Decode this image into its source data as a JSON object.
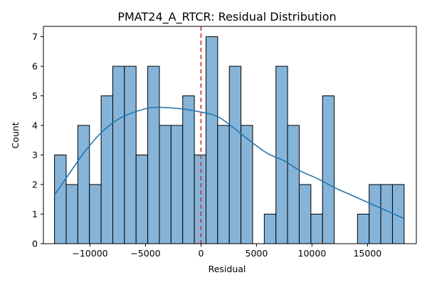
{
  "chart_data": {
    "type": "histogram",
    "title": "PMAT24_A_RTCR: Residual Distribution",
    "xlabel": "Residual",
    "ylabel": "Count",
    "xlim": [
      -14200,
      19400
    ],
    "ylim": [
      0,
      7.35
    ],
    "x_ticks": [
      -10000,
      -5000,
      0,
      5000,
      10000,
      15000
    ],
    "x_tick_labels": [
      "−10000",
      "−5000",
      "0",
      "5000",
      "10000",
      "15000"
    ],
    "y_ticks": [
      0,
      1,
      2,
      3,
      4,
      5,
      6,
      7
    ],
    "y_tick_labels": [
      "0",
      "1",
      "2",
      "3",
      "4",
      "5",
      "6",
      "7"
    ],
    "bin_start": -13200,
    "bin_width": 1050,
    "counts": [
      3,
      2,
      4,
      2,
      5,
      6,
      6,
      3,
      6,
      4,
      4,
      5,
      3,
      7,
      4,
      6,
      4,
      0,
      1,
      6,
      4,
      2,
      1,
      5,
      0,
      0,
      1,
      2,
      2,
      2
    ],
    "bar_color": "#86b4d8",
    "bar_edge_color": "#000000",
    "kde_color": "#1f77b4",
    "kde_x": [
      -13200,
      -12000,
      -10500,
      -9000,
      -7500,
      -6000,
      -4500,
      -3000,
      -1500,
      0,
      1500,
      3000,
      4500,
      6000,
      7500,
      9000,
      10500,
      12000,
      13500,
      15000,
      16500,
      18300
    ],
    "kde_y": [
      1.65,
      2.3,
      3.1,
      3.75,
      4.2,
      4.45,
      4.6,
      4.6,
      4.55,
      4.45,
      4.3,
      3.9,
      3.45,
      3.05,
      2.8,
      2.45,
      2.2,
      1.9,
      1.65,
      1.4,
      1.15,
      0.85
    ],
    "reference_line": {
      "x": 0,
      "color": "#d62728",
      "style": "dashed"
    },
    "grid": false
  }
}
